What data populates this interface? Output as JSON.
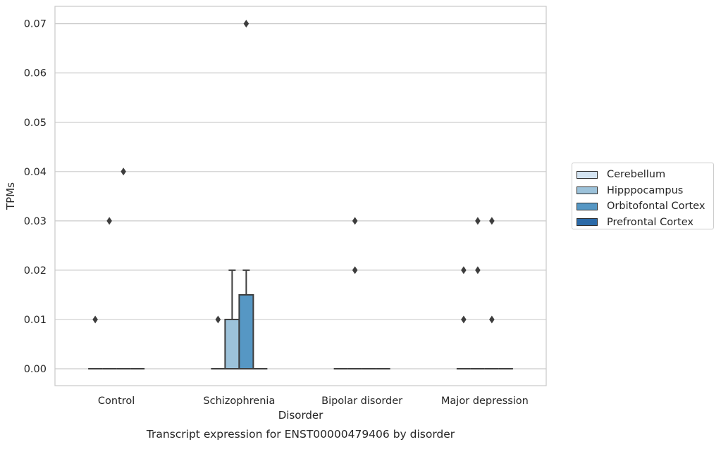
{
  "chart_data": {
    "type": "box",
    "title": "",
    "caption": "Transcript expression for ENST00000479406 by disorder",
    "xlabel": "Disorder",
    "ylabel": "TPMs",
    "ylim": [
      -0.0035,
      0.0735
    ],
    "yticks": [
      0.0,
      0.01,
      0.02,
      0.03,
      0.04,
      0.05,
      0.06,
      0.07
    ],
    "ytick_labels": [
      "0.00",
      "0.01",
      "0.02",
      "0.03",
      "0.04",
      "0.05",
      "0.06",
      "0.07"
    ],
    "grid": "horizontal",
    "legend_position": "right",
    "categories": [
      "Control",
      "Schizophrenia",
      "Bipolar disorder",
      "Major depression"
    ],
    "series": [
      {
        "name": "Cerebellum",
        "color": "#d4e4f2",
        "boxes": [
          {
            "q1": 0,
            "median": 0,
            "q3": 0,
            "whisker_low": 0,
            "whisker_high": 0,
            "outliers": [
              0.01
            ]
          },
          {
            "q1": 0,
            "median": 0,
            "q3": 0,
            "whisker_low": 0,
            "whisker_high": 0,
            "outliers": [
              0.01
            ]
          },
          {
            "q1": 0,
            "median": 0,
            "q3": 0,
            "whisker_low": 0,
            "whisker_high": 0,
            "outliers": []
          },
          {
            "q1": 0,
            "median": 0,
            "q3": 0,
            "whisker_low": 0,
            "whisker_high": 0,
            "outliers": [
              0.01,
              0.02
            ]
          }
        ]
      },
      {
        "name": "Hipppocampus",
        "color": "#9cc2da",
        "boxes": [
          {
            "q1": 0,
            "median": 0,
            "q3": 0,
            "whisker_low": 0,
            "whisker_high": 0,
            "outliers": [
              0.03
            ]
          },
          {
            "q1": 0,
            "median": 0,
            "q3": 0.01,
            "whisker_low": 0,
            "whisker_high": 0.02,
            "outliers": []
          },
          {
            "q1": 0,
            "median": 0,
            "q3": 0,
            "whisker_low": 0,
            "whisker_high": 0,
            "outliers": [
              0.02,
              0.03
            ]
          },
          {
            "q1": 0,
            "median": 0,
            "q3": 0,
            "whisker_low": 0,
            "whisker_high": 0,
            "outliers": [
              0.02,
              0.03
            ]
          }
        ]
      },
      {
        "name": "Orbitofontal Cortex",
        "color": "#5697c4",
        "boxes": [
          {
            "q1": 0,
            "median": 0,
            "q3": 0,
            "whisker_low": 0,
            "whisker_high": 0,
            "outliers": [
              0.04
            ]
          },
          {
            "q1": 0,
            "median": 0,
            "q3": 0.015,
            "whisker_low": 0,
            "whisker_high": 0.02,
            "outliers": [
              0.07
            ]
          },
          {
            "q1": 0,
            "median": 0,
            "q3": 0,
            "whisker_low": 0,
            "whisker_high": 0,
            "outliers": []
          },
          {
            "q1": 0,
            "median": 0,
            "q3": 0,
            "whisker_low": 0,
            "whisker_high": 0,
            "outliers": [
              0.01,
              0.03
            ]
          }
        ]
      },
      {
        "name": "Prefrontal Cortex",
        "color": "#2b6aa8",
        "boxes": [
          {
            "q1": 0,
            "median": 0,
            "q3": 0,
            "whisker_low": 0,
            "whisker_high": 0,
            "outliers": []
          },
          {
            "q1": 0,
            "median": 0,
            "q3": 0,
            "whisker_low": 0,
            "whisker_high": 0,
            "outliers": []
          },
          {
            "q1": 0,
            "median": 0,
            "q3": 0,
            "whisker_low": 0,
            "whisker_high": 0,
            "outliers": []
          },
          {
            "q1": 0,
            "median": 0,
            "q3": 0,
            "whisker_low": 0,
            "whisker_high": 0,
            "outliers": []
          }
        ]
      }
    ]
  }
}
